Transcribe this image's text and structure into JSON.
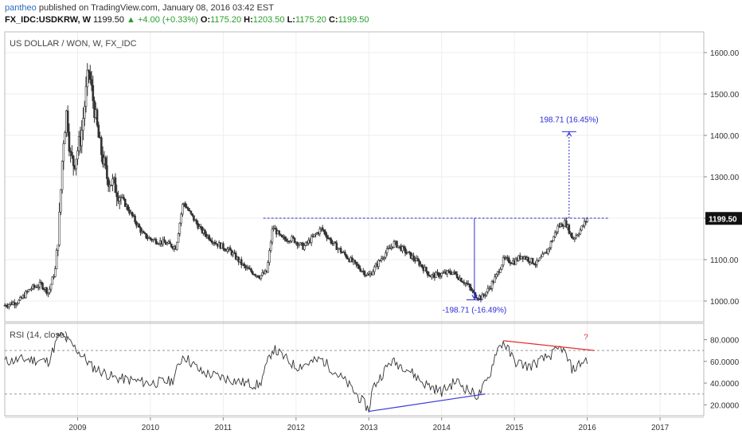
{
  "header": {
    "user": "pantheo",
    "published_text": "published on TradingView.com, January 08, 2016 03:42 EST",
    "symbol": "FX_IDC:USDKRW, W",
    "last": "1199.50",
    "change": "▲ +4.00 (+0.33%)",
    "o_label": "O:",
    "o": "1175.20",
    "h_label": "H:",
    "h": "1203.50",
    "l_label": "L:",
    "l": "1175.20",
    "c_label": "C:",
    "c": "1199.50"
  },
  "colors": {
    "candle": "#333333",
    "annotation_blue": "#2b2bd6",
    "trend_blue": "#3a3ad8",
    "trend_red": "#e03030",
    "rsi_line": "#333333",
    "price_tag_bg": "#111111",
    "grid": "#eeeeee"
  },
  "chart_data": [
    {
      "type": "candlestick",
      "title": "US DOLLAR / WON, W, FX_IDC",
      "ylim": [
        950,
        1650
      ],
      "yticks": [
        "1000.00",
        "1100.00",
        "1200.00",
        "1300.00",
        "1400.00",
        "1500.00",
        "1600.00"
      ],
      "last_price_label": "1199.50",
      "x_ticks": [
        "2009",
        "2010",
        "2011",
        "2012",
        "2013",
        "2014",
        "2015",
        "2016",
        "2017"
      ],
      "weekly_close_keypoints": [
        {
          "t": 2008.0,
          "v": 990
        },
        {
          "t": 2008.2,
          "v": 1000
        },
        {
          "t": 2008.35,
          "v": 1030
        },
        {
          "t": 2008.5,
          "v": 1040
        },
        {
          "t": 2008.6,
          "v": 1020
        },
        {
          "t": 2008.7,
          "v": 1080
        },
        {
          "t": 2008.75,
          "v": 1200
        },
        {
          "t": 2008.8,
          "v": 1380
        },
        {
          "t": 2008.85,
          "v": 1460
        },
        {
          "t": 2008.9,
          "v": 1350
        },
        {
          "t": 2008.95,
          "v": 1330
        },
        {
          "t": 2009.05,
          "v": 1400
        },
        {
          "t": 2009.15,
          "v": 1560
        },
        {
          "t": 2009.2,
          "v": 1500
        },
        {
          "t": 2009.3,
          "v": 1380
        },
        {
          "t": 2009.4,
          "v": 1300
        },
        {
          "t": 2009.5,
          "v": 1280
        },
        {
          "t": 2009.7,
          "v": 1220
        },
        {
          "t": 2009.9,
          "v": 1160
        },
        {
          "t": 2010.0,
          "v": 1150
        },
        {
          "t": 2010.2,
          "v": 1140
        },
        {
          "t": 2010.35,
          "v": 1130
        },
        {
          "t": 2010.45,
          "v": 1240
        },
        {
          "t": 2010.55,
          "v": 1210
        },
        {
          "t": 2010.7,
          "v": 1170
        },
        {
          "t": 2010.9,
          "v": 1140
        },
        {
          "t": 2011.1,
          "v": 1120
        },
        {
          "t": 2011.3,
          "v": 1080
        },
        {
          "t": 2011.5,
          "v": 1060
        },
        {
          "t": 2011.6,
          "v": 1070
        },
        {
          "t": 2011.68,
          "v": 1180
        },
        {
          "t": 2011.8,
          "v": 1150
        },
        {
          "t": 2011.95,
          "v": 1150
        },
        {
          "t": 2012.1,
          "v": 1130
        },
        {
          "t": 2012.35,
          "v": 1175
        },
        {
          "t": 2012.5,
          "v": 1140
        },
        {
          "t": 2012.8,
          "v": 1090
        },
        {
          "t": 2013.0,
          "v": 1060
        },
        {
          "t": 2013.2,
          "v": 1110
        },
        {
          "t": 2013.35,
          "v": 1140
        },
        {
          "t": 2013.5,
          "v": 1120
        },
        {
          "t": 2013.7,
          "v": 1090
        },
        {
          "t": 2013.85,
          "v": 1060
        },
        {
          "t": 2014.0,
          "v": 1065
        },
        {
          "t": 2014.15,
          "v": 1070
        },
        {
          "t": 2014.35,
          "v": 1040
        },
        {
          "t": 2014.45,
          "v": 1015
        },
        {
          "t": 2014.55,
          "v": 1008
        },
        {
          "t": 2014.65,
          "v": 1030
        },
        {
          "t": 2014.75,
          "v": 1060
        },
        {
          "t": 2014.85,
          "v": 1100
        },
        {
          "t": 2015.0,
          "v": 1095
        },
        {
          "t": 2015.1,
          "v": 1110
        },
        {
          "t": 2015.3,
          "v": 1090
        },
        {
          "t": 2015.45,
          "v": 1120
        },
        {
          "t": 2015.6,
          "v": 1180
        },
        {
          "t": 2015.7,
          "v": 1190
        },
        {
          "t": 2015.8,
          "v": 1150
        },
        {
          "t": 2015.9,
          "v": 1170
        },
        {
          "t": 2016.0,
          "v": 1199.5
        }
      ],
      "annotations": {
        "resistance_level": 1200,
        "down_measure_label": "-198.71 (-16.49%)",
        "up_measure_label": "198.71 (16.45%)",
        "up_target": 1409
      }
    },
    {
      "type": "line",
      "title": "RSI (14, close)",
      "ylim": [
        10,
        95
      ],
      "yticks": [
        "20.0000",
        "40.0000",
        "60.0000",
        "80.0000"
      ],
      "bands": [
        30,
        70
      ],
      "keypoints": [
        {
          "t": 2008.0,
          "v": 60
        },
        {
          "t": 2008.3,
          "v": 62
        },
        {
          "t": 2008.6,
          "v": 60
        },
        {
          "t": 2008.75,
          "v": 85
        },
        {
          "t": 2008.85,
          "v": 80
        },
        {
          "t": 2009.0,
          "v": 70
        },
        {
          "t": 2009.2,
          "v": 55
        },
        {
          "t": 2009.5,
          "v": 45
        },
        {
          "t": 2009.8,
          "v": 42
        },
        {
          "t": 2010.0,
          "v": 40
        },
        {
          "t": 2010.3,
          "v": 42
        },
        {
          "t": 2010.45,
          "v": 66
        },
        {
          "t": 2010.7,
          "v": 50
        },
        {
          "t": 2011.0,
          "v": 45
        },
        {
          "t": 2011.3,
          "v": 40
        },
        {
          "t": 2011.5,
          "v": 38
        },
        {
          "t": 2011.68,
          "v": 72
        },
        {
          "t": 2012.0,
          "v": 55
        },
        {
          "t": 2012.35,
          "v": 62
        },
        {
          "t": 2012.7,
          "v": 40
        },
        {
          "t": 2012.95,
          "v": 20
        },
        {
          "t": 2013.0,
          "v": 15
        },
        {
          "t": 2013.05,
          "v": 35
        },
        {
          "t": 2013.3,
          "v": 60
        },
        {
          "t": 2013.5,
          "v": 55
        },
        {
          "t": 2013.75,
          "v": 40
        },
        {
          "t": 2014.0,
          "v": 32
        },
        {
          "t": 2014.2,
          "v": 42
        },
        {
          "t": 2014.4,
          "v": 32
        },
        {
          "t": 2014.5,
          "v": 28
        },
        {
          "t": 2014.65,
          "v": 45
        },
        {
          "t": 2014.75,
          "v": 70
        },
        {
          "t": 2014.85,
          "v": 78
        },
        {
          "t": 2015.0,
          "v": 60
        },
        {
          "t": 2015.2,
          "v": 55
        },
        {
          "t": 2015.4,
          "v": 62
        },
        {
          "t": 2015.55,
          "v": 68
        },
        {
          "t": 2015.65,
          "v": 73
        },
        {
          "t": 2015.8,
          "v": 52
        },
        {
          "t": 2015.9,
          "v": 58
        },
        {
          "t": 2016.0,
          "v": 62
        }
      ],
      "annotations": {
        "question_mark": "?"
      }
    }
  ]
}
